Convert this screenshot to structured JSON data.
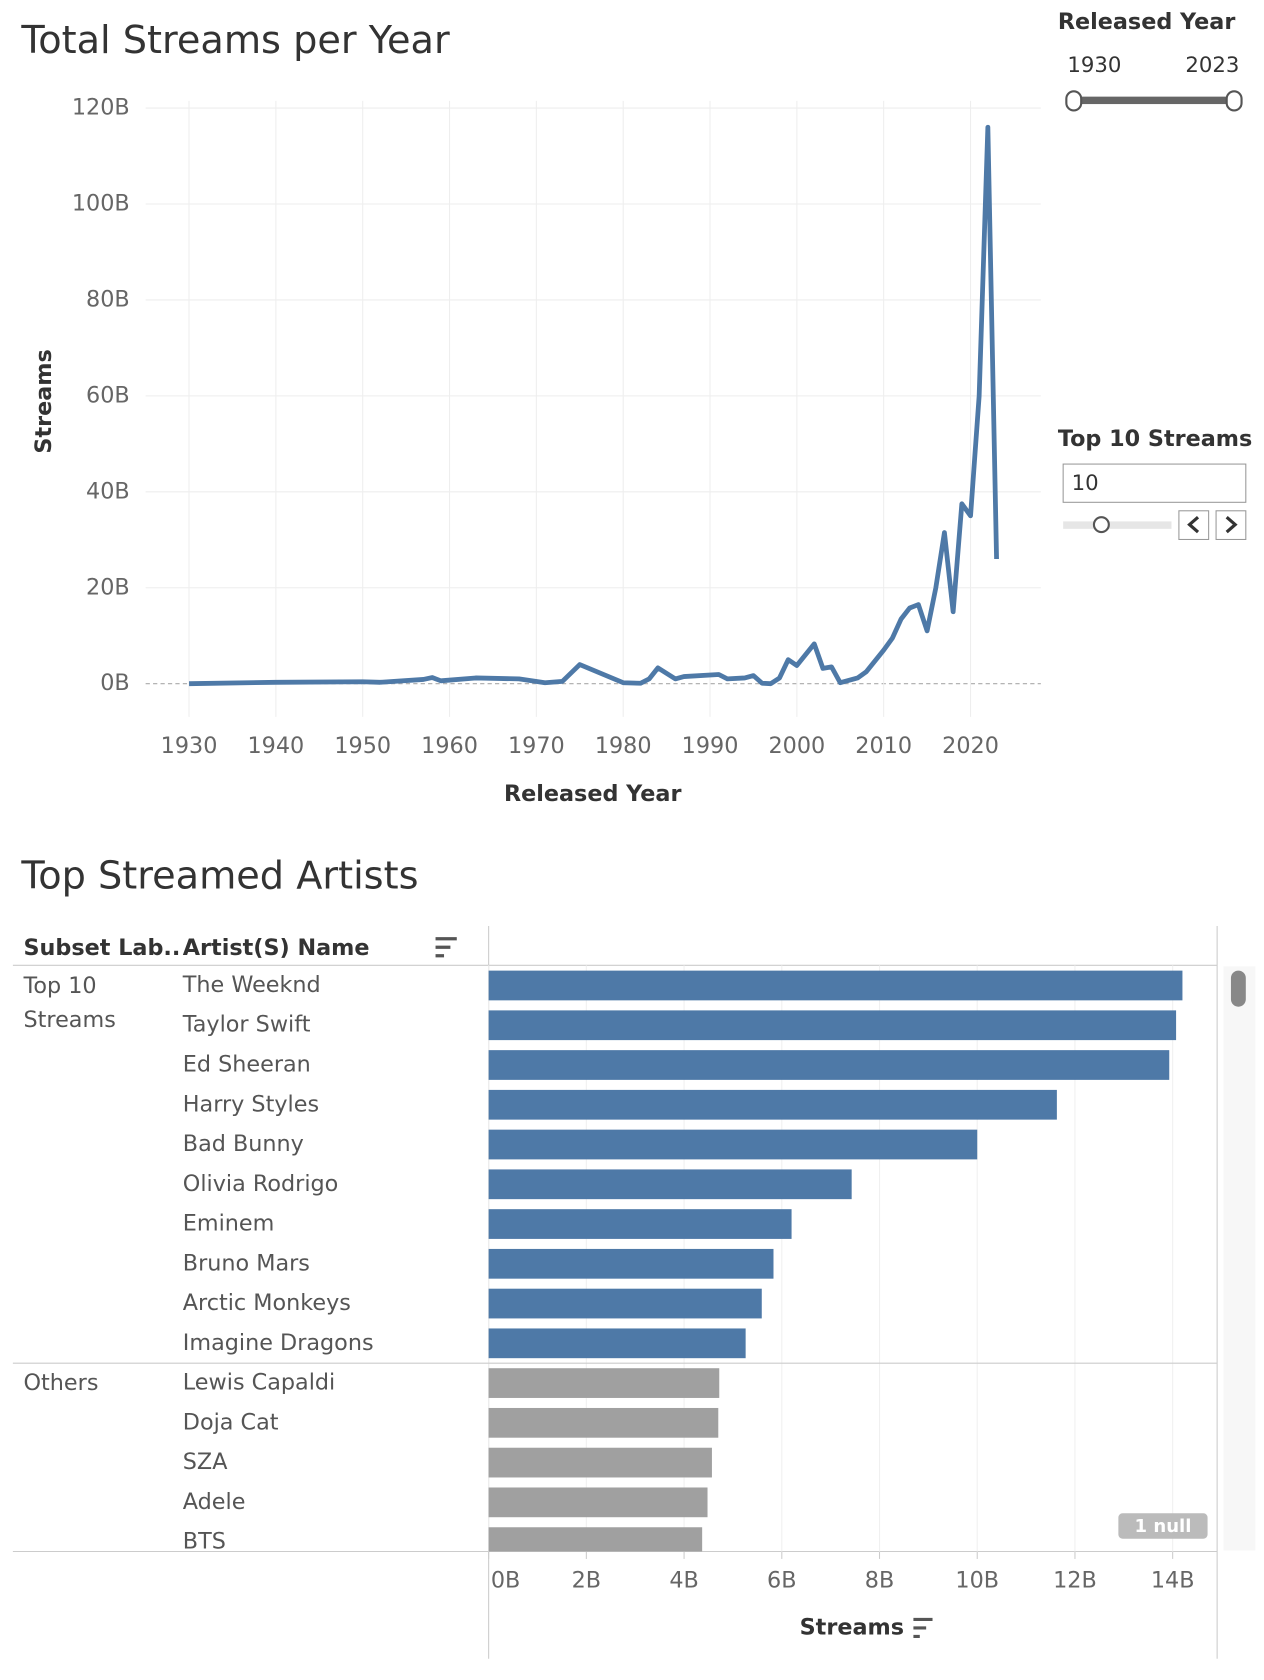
{
  "chart_data": [
    {
      "type": "line",
      "title": "Total Streams per Year",
      "x_label": "Released Year",
      "y_label": "Streams",
      "x": [
        1930,
        1940,
        1950,
        1952,
        1957,
        1958,
        1959,
        1963,
        1968,
        1971,
        1973,
        1975,
        1980,
        1982,
        1983,
        1984,
        1986,
        1987,
        1991,
        1992,
        1994,
        1995,
        1996,
        1997,
        1998,
        1999,
        2000,
        2002,
        2003,
        2004,
        2005,
        2007,
        2008,
        2010,
        2011,
        2012,
        2013,
        2014,
        2015,
        2016,
        2017,
        2018,
        2019,
        2020,
        2021,
        2022,
        2023
      ],
      "series": [
        {
          "name": "Streams",
          "color": "#4e79a7",
          "values": [
            0,
            0.3,
            0.4,
            0.3,
            0.9,
            1.3,
            0.6,
            1.2,
            1.0,
            0.2,
            0.5,
            4.0,
            0.2,
            0.1,
            1.0,
            3.3,
            1.0,
            1.5,
            1.9,
            1.0,
            1.2,
            1.7,
            0.1,
            0.0,
            1.2,
            5.0,
            3.8,
            8.3,
            3.2,
            3.5,
            0.2,
            1.2,
            2.5,
            7.0,
            9.5,
            13.5,
            15.8,
            16.5,
            11.0,
            20.0,
            31.5,
            15.0,
            37.5,
            35.0,
            60.0,
            116.0,
            26.0
          ]
        }
      ],
      "xlim": [
        1925,
        2028.1
      ],
      "xticks": [
        1930,
        1940,
        1950,
        1960,
        1970,
        1980,
        1990,
        2000,
        2010,
        2020
      ],
      "ylim": [
        -6.9,
        121.5
      ],
      "yticks": [
        {
          "value": 0,
          "label": "0B"
        },
        {
          "value": 20,
          "label": "20B"
        },
        {
          "value": 40,
          "label": "40B"
        },
        {
          "value": 60,
          "label": "60B"
        },
        {
          "value": 80,
          "label": "80B"
        },
        {
          "value": 100,
          "label": "100B"
        },
        {
          "value": 120,
          "label": "120B"
        }
      ],
      "grid": true
    },
    {
      "type": "hbar",
      "title": "Top Streamed Artists",
      "column_headers": [
        "Subset Lab..",
        "Artist(S) Name"
      ],
      "x_label": "Streams",
      "categories": [
        "The Weeknd",
        "Taylor Swift",
        "Ed Sheeran",
        "Harry Styles",
        "Bad Bunny",
        "Olivia Rodrigo",
        "Eminem",
        "Bruno Mars",
        "Arctic Monkeys",
        "Imagine Dragons",
        "Lewis Capaldi",
        "Doja Cat",
        "SZA",
        "Adele",
        "BTS"
      ],
      "series": [
        {
          "name": "Top 10 Streams",
          "color": "#4e79a7",
          "values": [
            14.2,
            14.07,
            13.93,
            11.63,
            10.0,
            7.43,
            6.2,
            5.83,
            5.59,
            5.26,
            null,
            null,
            null,
            null,
            null
          ]
        },
        {
          "name": "Others",
          "color": "#a0a0a0",
          "values": [
            null,
            null,
            null,
            null,
            null,
            null,
            null,
            null,
            null,
            null,
            4.72,
            4.7,
            4.57,
            4.48,
            4.37
          ]
        }
      ],
      "xlim": [
        0,
        14.91
      ],
      "xticks": [
        {
          "value": 0,
          "label": "0B"
        },
        {
          "value": 2,
          "label": "2B"
        },
        {
          "value": 4,
          "label": "4B"
        },
        {
          "value": 6,
          "label": "6B"
        },
        {
          "value": 8,
          "label": "8B"
        },
        {
          "value": 10,
          "label": "10B"
        },
        {
          "value": 12,
          "label": "12B"
        },
        {
          "value": 14,
          "label": "14B"
        }
      ],
      "grid": true,
      "null_label": "1 null"
    }
  ],
  "filters": {
    "released_year": {
      "title": "Released Year",
      "min": 1930,
      "max": 2023
    },
    "top_n": {
      "title": "Top 10 Streams",
      "value": 10
    }
  }
}
